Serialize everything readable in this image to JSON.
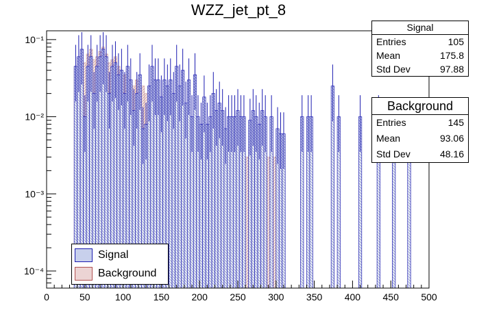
{
  "chart_data": {
    "type": "bar",
    "title": "WZZ_jet_pt_8",
    "xlabel": "",
    "ylabel": "",
    "yscale": "log",
    "xlim": [
      0,
      500
    ],
    "ylim": [
      6e-05,
      0.13
    ],
    "x_ticks": [
      "0",
      "50",
      "100",
      "150",
      "200",
      "250",
      "300",
      "350",
      "400",
      "450",
      "500"
    ],
    "y_ticks": [
      {
        "value": 0.1,
        "label": "10⁻¹"
      },
      {
        "value": 0.01,
        "label": "10⁻²"
      },
      {
        "value": 0.001,
        "label": "10⁻³"
      },
      {
        "value": 0.0001,
        "label": "10⁻⁴"
      }
    ],
    "bin_width": 4,
    "series": [
      {
        "name": "Background",
        "color": "#c89898",
        "bins": [
          [
            36,
            0.045
          ],
          [
            40,
            0.06
          ],
          [
            44,
            0.07
          ],
          [
            48,
            0.05
          ],
          [
            52,
            0.065
          ],
          [
            56,
            0.075
          ],
          [
            60,
            0.055
          ],
          [
            64,
            0.06
          ],
          [
            68,
            0.07
          ],
          [
            72,
            0.08
          ],
          [
            76,
            0.065
          ],
          [
            80,
            0.05
          ],
          [
            84,
            0.055
          ],
          [
            88,
            0.06
          ],
          [
            92,
            0.045
          ],
          [
            96,
            0.04
          ],
          [
            100,
            0.035
          ],
          [
            104,
            0.04
          ],
          [
            108,
            0.03
          ],
          [
            112,
            0.025
          ],
          [
            116,
            0.03
          ],
          [
            120,
            0.02
          ],
          [
            124,
            0.025
          ],
          [
            128,
            0.02
          ],
          [
            132,
            0.015
          ],
          [
            136,
            0.018
          ],
          [
            140,
            0.02
          ],
          [
            144,
            0.015
          ],
          [
            148,
            0.018
          ],
          [
            152,
            0.02
          ],
          [
            156,
            0.015
          ],
          [
            160,
            0.012
          ],
          [
            164,
            0.013
          ],
          [
            168,
            0.01
          ],
          [
            172,
            0.012
          ],
          [
            176,
            0.009
          ],
          [
            180,
            0.01
          ],
          [
            184,
            0.008
          ],
          [
            188,
            0.009
          ],
          [
            192,
            0.007
          ],
          [
            196,
            0.008
          ],
          [
            200,
            0.006
          ],
          [
            204,
            0.007
          ],
          [
            208,
            0.006
          ],
          [
            212,
            0.005
          ],
          [
            216,
            0.006
          ],
          [
            220,
            0.005
          ],
          [
            224,
            0.005
          ],
          [
            228,
            0.005
          ],
          [
            232,
            0.004
          ],
          [
            236,
            0.004
          ],
          [
            240,
            0.005
          ],
          [
            244,
            0.004
          ],
          [
            248,
            0.005
          ],
          [
            252,
            0.004
          ],
          [
            256,
            0.004
          ],
          [
            260,
            0.003
          ],
          [
            264,
            0.004
          ],
          [
            268,
            0.003
          ],
          [
            272,
            0.004
          ],
          [
            276,
            0.003
          ],
          [
            280,
            0.004
          ],
          [
            284,
            0.003
          ],
          [
            288,
            0.003
          ],
          [
            292,
            0.004
          ],
          [
            296,
            0.003
          ],
          [
            300,
            0.003
          ],
          [
            304,
            0.003
          ],
          [
            308,
            0.003
          ]
        ]
      },
      {
        "name": "Signal",
        "color": "#1a1ab0",
        "bins": [
          [
            36,
            0.045
          ],
          [
            40,
            0.06
          ],
          [
            44,
            0.075
          ],
          [
            48,
            0.01
          ],
          [
            52,
            0.045
          ],
          [
            56,
            0.06
          ],
          [
            60,
            0.02
          ],
          [
            64,
            0.045
          ],
          [
            68,
            0.06
          ],
          [
            72,
            0.075
          ],
          [
            76,
            0.06
          ],
          [
            80,
            0.02
          ],
          [
            84,
            0.045
          ],
          [
            88,
            0.05
          ],
          [
            92,
            0.035
          ],
          [
            96,
            0.04
          ],
          [
            100,
            0.02
          ],
          [
            104,
            0.045
          ],
          [
            108,
            0.03
          ],
          [
            112,
            0.012
          ],
          [
            116,
            0.02
          ],
          [
            120,
            0.035
          ],
          [
            124,
            0.007
          ],
          [
            128,
            0.008
          ],
          [
            132,
            0.025
          ],
          [
            136,
            0.045
          ],
          [
            140,
            0.03
          ],
          [
            144,
            0.03
          ],
          [
            148,
            0.018
          ],
          [
            152,
            0.03
          ],
          [
            156,
            0.025
          ],
          [
            160,
            0.03
          ],
          [
            164,
            0.02
          ],
          [
            168,
            0.045
          ],
          [
            172,
            0.025
          ],
          [
            176,
            0.04
          ],
          [
            180,
            0.015
          ],
          [
            184,
            0.03
          ],
          [
            188,
            0.01
          ],
          [
            192,
            0.035
          ],
          [
            196,
            0.01
          ],
          [
            200,
            0.008
          ],
          [
            204,
            0.018
          ],
          [
            208,
            0.008
          ],
          [
            212,
            0.01
          ],
          [
            216,
            0.02
          ],
          [
            220,
            0.012
          ],
          [
            224,
            0.015
          ],
          [
            228,
            0.012
          ],
          [
            232,
            0.007
          ],
          [
            236,
            0.01
          ],
          [
            240,
            0.01
          ],
          [
            244,
            0.01
          ],
          [
            248,
            0.012
          ],
          [
            252,
            0.01
          ],
          [
            256,
            0.01
          ],
          [
            264,
            0.009
          ],
          [
            268,
            0.012
          ],
          [
            272,
            0.01
          ],
          [
            276,
            0.008
          ],
          [
            280,
            0.012
          ],
          [
            284,
            0.01
          ],
          [
            292,
            0.01
          ],
          [
            300,
            0.007
          ],
          [
            304,
            0.006
          ],
          [
            308,
            0.006
          ],
          [
            332,
            0.01
          ],
          [
            340,
            0.01
          ],
          [
            344,
            0.01
          ],
          [
            372,
            0.025
          ],
          [
            380,
            0.01
          ],
          [
            408,
            0.01
          ],
          [
            432,
            0.01
          ],
          [
            452,
            0.008
          ],
          [
            472,
            0.008
          ]
        ]
      }
    ],
    "stats": {
      "signal": {
        "title": "Signal",
        "entries_label": "Entries",
        "entries": "105",
        "mean_label": "Mean",
        "mean": "175.8",
        "std_label": "Std Dev",
        "std": "97.88"
      },
      "background": {
        "title": "Background",
        "entries_label": "Entries",
        "entries": "145",
        "mean_label": "Mean",
        "mean": "93.06",
        "std_label": "Std Dev",
        "std": "48.16"
      }
    },
    "legend": [
      {
        "label": "Signal",
        "fill": "#c8d0ec",
        "border": "#1a1ab0"
      },
      {
        "label": "Background",
        "fill": "#ecd4d4",
        "border": "#b05050"
      }
    ],
    "legend_position": "bottom-left"
  }
}
